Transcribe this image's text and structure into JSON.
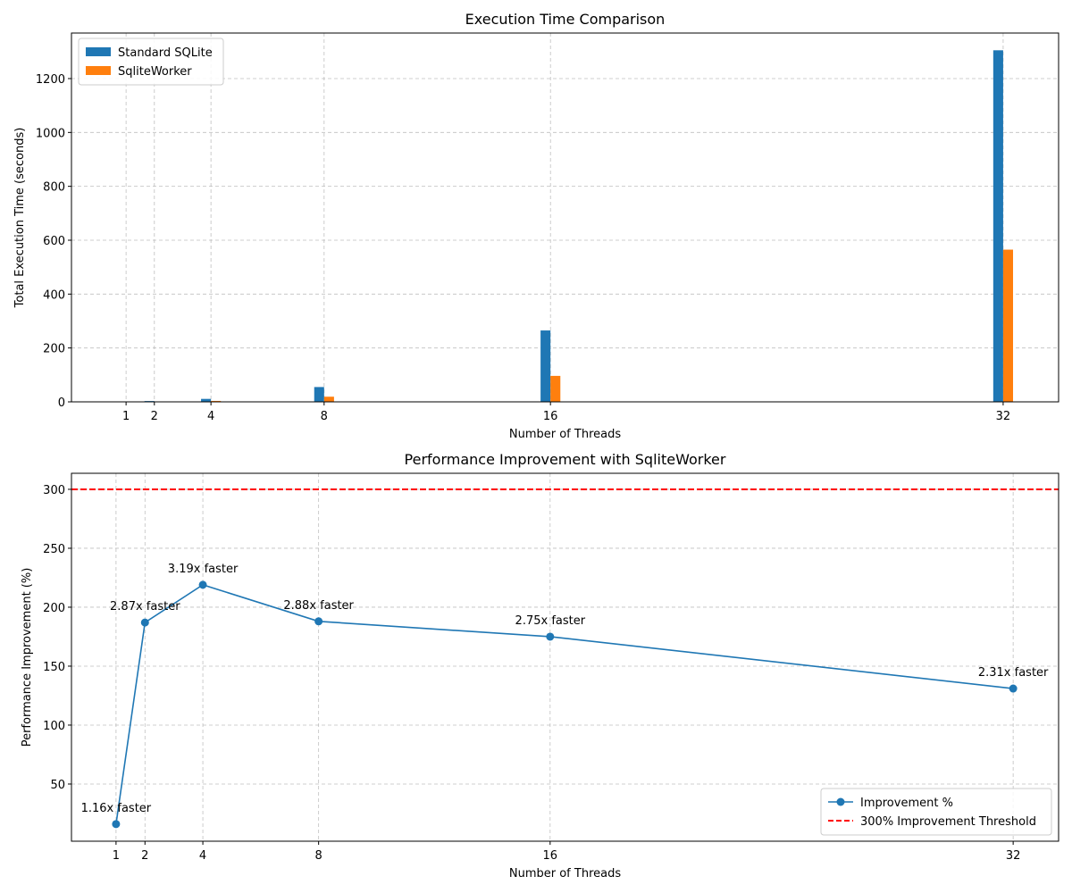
{
  "chart_data": [
    {
      "type": "bar",
      "title": "Execution Time Comparison",
      "xlabel": "Number of Threads",
      "ylabel": "Total Execution Time (seconds)",
      "x": [
        1,
        2,
        4,
        8,
        16,
        32
      ],
      "series": [
        {
          "name": "Standard SQLite",
          "color": "#1f77b4",
          "values": [
            0.7,
            3,
            11,
            55,
            265,
            1305
          ]
        },
        {
          "name": "SqliteWorker",
          "color": "#ff7f0e",
          "values": [
            0.6,
            1.05,
            3.45,
            19.1,
            96.4,
            565
          ]
        }
      ],
      "xlim": [
        -0.93,
        33.96
      ],
      "ylim": [
        0,
        1369
      ],
      "xticks": [
        1,
        2,
        4,
        8,
        16,
        32
      ],
      "yticks": [
        0,
        200,
        400,
        600,
        800,
        1000,
        1200
      ],
      "grid": true,
      "legend": "upper left"
    },
    {
      "type": "line",
      "title": "Performance Improvement with SqliteWorker",
      "xlabel": "Number of Threads",
      "ylabel": "Performance Improvement (%)",
      "x": [
        1,
        2,
        4,
        8,
        16,
        32
      ],
      "series": [
        {
          "name": "Improvement %",
          "color": "#1f77b4",
          "values": [
            16,
            187,
            219,
            188,
            175,
            131
          ],
          "annotations": [
            "1.16x faster",
            "2.87x faster",
            "3.19x faster",
            "2.88x faster",
            "2.75x faster",
            "2.31x faster"
          ]
        }
      ],
      "threshold": {
        "name": "300% Improvement Threshold",
        "value": 300,
        "color": "#ff0000"
      },
      "xlim": [
        -0.54,
        33.57
      ],
      "ylim": [
        1.5,
        313.6
      ],
      "xticks": [
        1,
        2,
        4,
        8,
        16,
        32
      ],
      "yticks": [
        50,
        100,
        150,
        200,
        250,
        300
      ],
      "grid": true,
      "legend": "lower right"
    }
  ]
}
